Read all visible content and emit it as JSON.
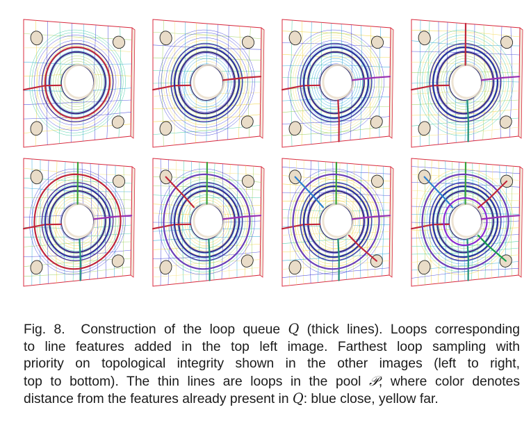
{
  "figure": {
    "panels": [
      {
        "id": "r1c1",
        "thick_loops": 2,
        "thick_colors": [
          "#c0263a",
          "#c0263a"
        ]
      },
      {
        "id": "r1c2",
        "thick_loops": 3,
        "thick_colors": [
          "#c0263a",
          "#2c2f9e",
          "#c0263a"
        ]
      },
      {
        "id": "r1c3",
        "thick_loops": 4,
        "thick_colors": [
          "#c0263a",
          "#2c2f9e",
          "#9a2fb0",
          "#c0263a"
        ]
      },
      {
        "id": "r1c4",
        "thick_loops": 5,
        "thick_colors": [
          "#c0263a",
          "#2c2f9e",
          "#9a2fb0",
          "#1f8f7a",
          "#c0263a"
        ]
      },
      {
        "id": "r2c1",
        "thick_loops": 6,
        "thick_colors": [
          "#c0263a",
          "#2c2f9e",
          "#9a2fb0",
          "#1f8f7a",
          "#3aa23a",
          "#c0263a"
        ]
      },
      {
        "id": "r2c2",
        "thick_loops": 7,
        "thick_colors": [
          "#c0263a",
          "#2c2f9e",
          "#9a2fb0",
          "#1f8f7a",
          "#3aa23a",
          "#6b3fb8",
          "#c0263a"
        ]
      },
      {
        "id": "r2c3",
        "thick_loops": 8,
        "thick_colors": [
          "#c0263a",
          "#2c2f9e",
          "#9a2fb0",
          "#1f8f7a",
          "#3aa23a",
          "#6b3fb8",
          "#2a7fd0",
          "#c0263a"
        ]
      },
      {
        "id": "r2c4",
        "thick_loops": 10,
        "thick_colors": [
          "#c0263a",
          "#2c2f9e",
          "#9a2fb0",
          "#1f8f7a",
          "#3aa23a",
          "#6b3fb8",
          "#2a7fd0",
          "#14a04a",
          "#8a2bd0",
          "#c0263a"
        ]
      }
    ],
    "thin_palette": [
      "#3b3bd6",
      "#2aa6d8",
      "#3cc9a0",
      "#9ad05a",
      "#f2d23c",
      "#f6e07a"
    ],
    "plate_colors": {
      "border": "#d8283c",
      "face": "#ffffff",
      "hole_inner": "#e9dcc8"
    }
  },
  "caption": {
    "label": "Fig. 8.",
    "line1_before": "Construction of the loop queue ",
    "sym_Q": "Q",
    "line1_after": " (thick lines). Loops corresponding",
    "line2": "to line features added in the top left image. Farthest loop sampling with",
    "line3": "priority on topological integrity shown in the other images (left to right,",
    "line4_before": "top to bottom). The thin lines are loops in the pool ",
    "sym_P": "𝒫",
    "line4_after": ", where color denotes",
    "line5_before": "distance from the features already present in ",
    "line5_after": ": blue close, yellow far."
  }
}
